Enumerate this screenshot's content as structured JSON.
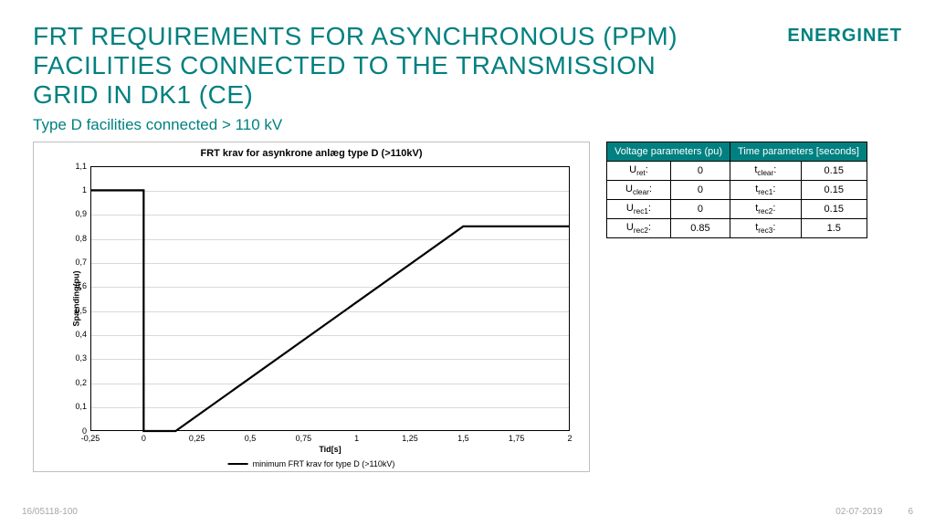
{
  "brand": {
    "name": "ENERGINET",
    "color_primary": "#008080",
    "color_accent": "#00a99d"
  },
  "title": "FRT REQUIREMENTS FOR ASYNCHRONOUS (PPM) FACILITIES CONNECTED TO THE TRANSMISSION GRID IN DK1 (CE)",
  "title_color": "#008080",
  "subtitle": "Type D facilities connected > 110 kV",
  "subtitle_color": "#008080",
  "chart": {
    "type": "line",
    "title": "FRT krav for asynkrone anlæg type D (>110kV)",
    "xlabel": "Tid[s]",
    "ylabel": "Spænding(pu)",
    "xlim": [
      -0.25,
      2.0
    ],
    "ylim": [
      0,
      1.1
    ],
    "xtick_step": 0.25,
    "ytick_step": 0.1,
    "xticks": [
      "-0,25",
      "0",
      "0,25",
      "0,5",
      "0,75",
      "1",
      "1,25",
      "1,5",
      "1,75",
      "2"
    ],
    "yticks": [
      "0",
      "0,1",
      "0,2",
      "0,3",
      "0,4",
      "0,5",
      "0,6",
      "0,7",
      "0,8",
      "0,9",
      "1",
      "1,1"
    ],
    "grid_color": "#d9d9d9",
    "border_color": "#000000",
    "background_color": "#ffffff",
    "series": {
      "label": "minimum FRT krav for type D (>110kV)",
      "color": "#000000",
      "line_width": 2.2,
      "points": [
        {
          "x": -0.25,
          "y": 1.0
        },
        {
          "x": 0.0,
          "y": 1.0
        },
        {
          "x": 0.0,
          "y": 0.0
        },
        {
          "x": 0.15,
          "y": 0.0
        },
        {
          "x": 1.5,
          "y": 0.85
        },
        {
          "x": 2.0,
          "y": 0.85
        }
      ]
    }
  },
  "table": {
    "header_bg": "#008080",
    "header_color": "#ffffff",
    "headers": [
      "Voltage parameters (pu)",
      "Time parameters [seconds]"
    ],
    "rows": [
      {
        "v_label": "U",
        "v_sub": "ret",
        "v_val": "0",
        "t_label": "t",
        "t_sub": "clear",
        "t_val": "0.15"
      },
      {
        "v_label": "U",
        "v_sub": "clear",
        "v_val": "0",
        "t_label": "t",
        "t_sub": "rec1",
        "t_val": "0.15"
      },
      {
        "v_label": "U",
        "v_sub": "rec1",
        "v_val": "0",
        "t_label": "t",
        "t_sub": "rec2",
        "t_val": "0.15"
      },
      {
        "v_label": "U",
        "v_sub": "rec2",
        "v_val": "0.85",
        "t_label": "t",
        "t_sub": "rec3",
        "t_val": "1.5"
      }
    ]
  },
  "footer": {
    "left": "16/05118-100",
    "date": "02-07-2019",
    "page": "6"
  }
}
